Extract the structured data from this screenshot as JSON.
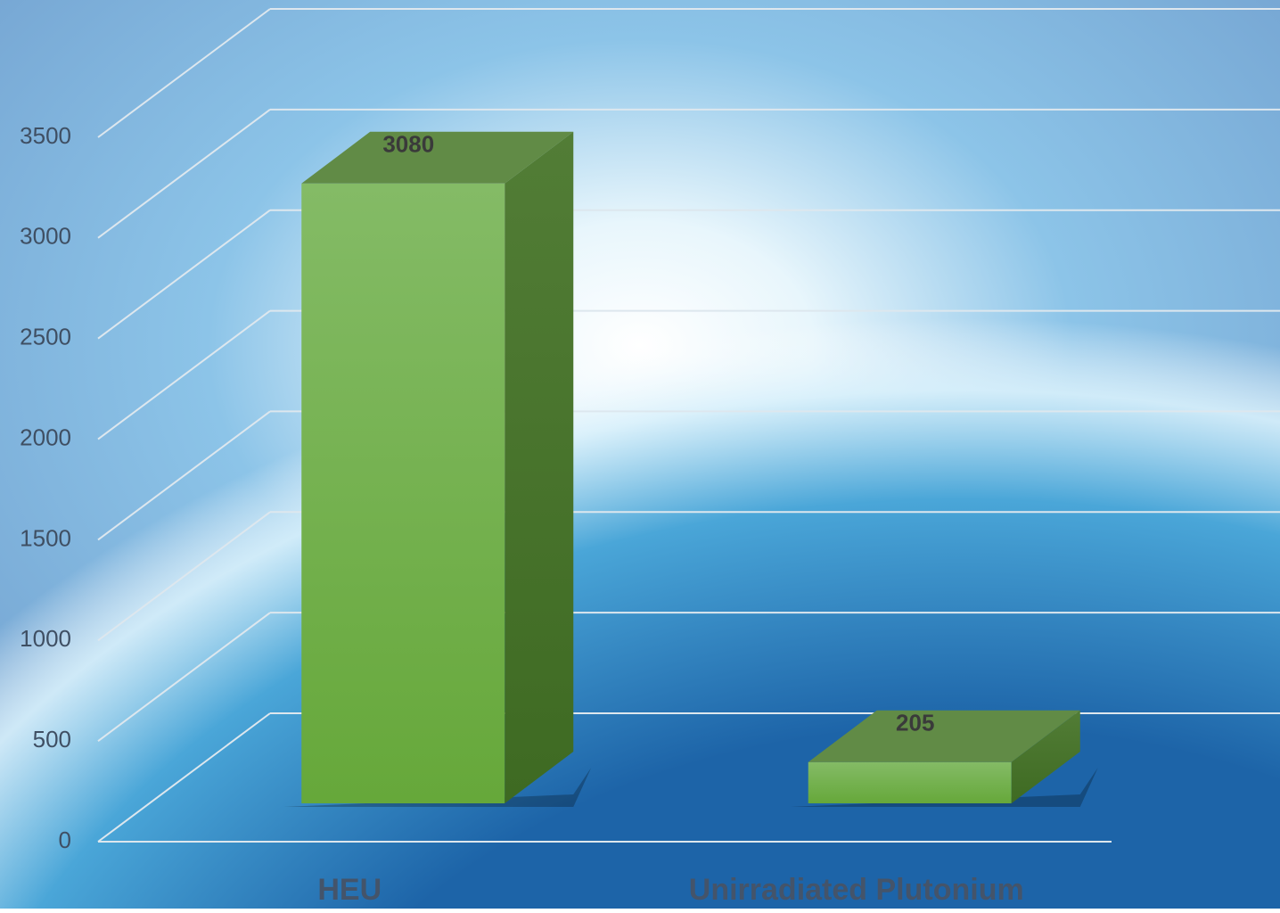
{
  "chart_data": {
    "type": "bar3d",
    "categories": [
      "HEU",
      "Unirradiated Plutonium"
    ],
    "values": [
      3080,
      205
    ],
    "color": "#70ad47",
    "ylim": [
      0,
      3500
    ],
    "yticks": [
      0,
      500,
      1000,
      1500,
      2000,
      2500,
      3000,
      3500
    ],
    "grid": true
  }
}
